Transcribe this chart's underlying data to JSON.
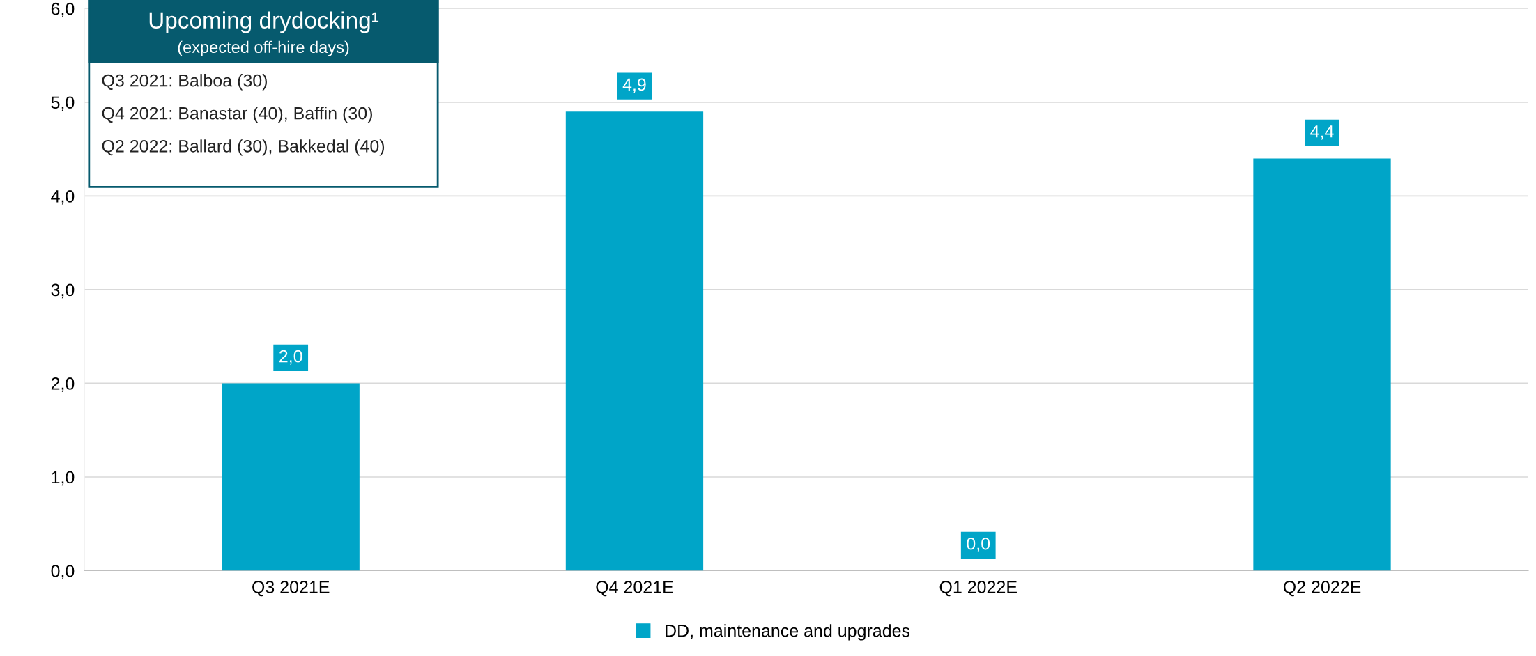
{
  "chart_data": {
    "type": "bar",
    "categories": [
      "Q3 2021E",
      "Q4 2021E",
      "Q1 2022E",
      "Q2 2022E"
    ],
    "series": [
      {
        "name": "DD, maintenance and upgrades",
        "color": "#00a5c8",
        "values": [
          2.0,
          4.9,
          0.0,
          4.4
        ],
        "value_labels": [
          "2,0",
          "4,9",
          "0,0",
          "4,4"
        ]
      }
    ],
    "ylim": [
      0,
      6
    ],
    "yticks": [
      {
        "value": 0,
        "label": "0,0"
      },
      {
        "value": 1,
        "label": "1,0"
      },
      {
        "value": 2,
        "label": "2,0"
      },
      {
        "value": 3,
        "label": "3,0"
      },
      {
        "value": 4,
        "label": "4,0"
      },
      {
        "value": 5,
        "label": "5,0"
      },
      {
        "value": 6,
        "label": "6,0"
      }
    ],
    "grid": "y",
    "legend": "bottom",
    "annotations": [
      "Upcoming drydocking¹",
      "(expected off-hire days)",
      "Q3 2021: Balboa (30)",
      "Q4 2021: Banastar (40), Baffin (30)",
      "Q2 2022: Ballard (30), Bakkedal (40)"
    ]
  }
}
